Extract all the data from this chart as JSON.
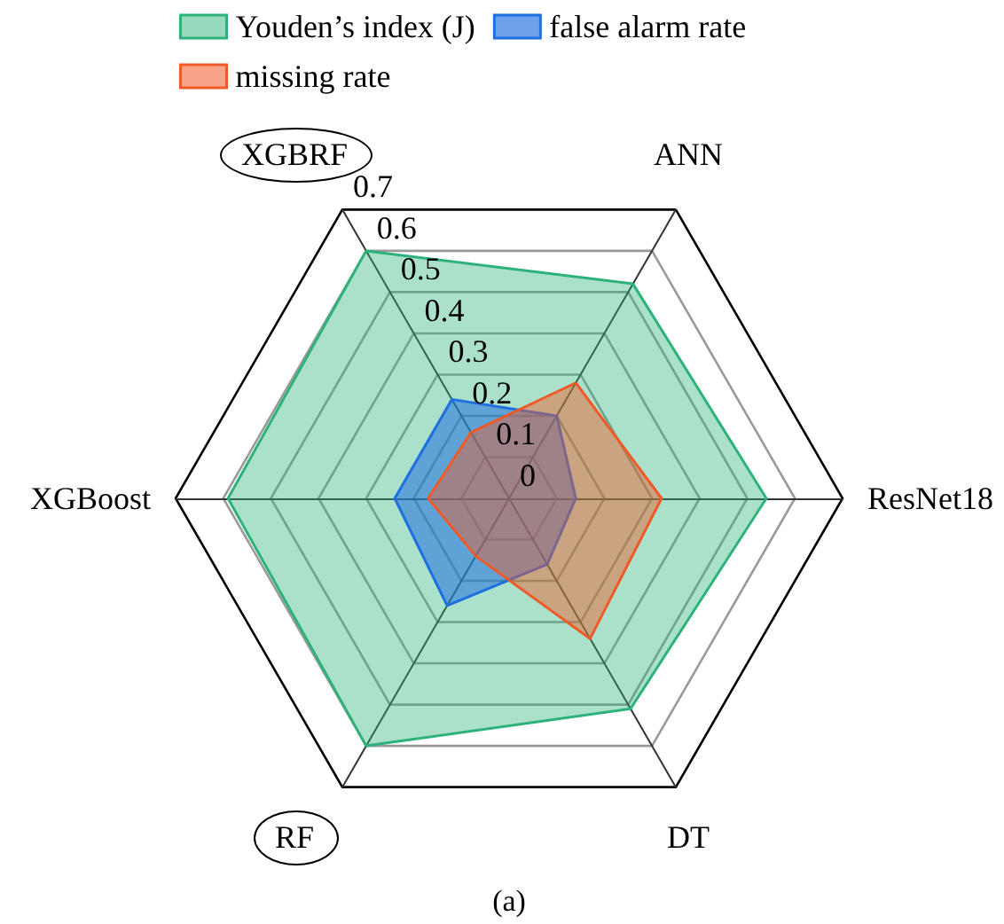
{
  "chart_data": {
    "type": "radar",
    "categories": [
      "ANN",
      "ResNet18",
      "DT",
      "RF",
      "XGBoost",
      "XGBRF"
    ],
    "series": [
      {
        "name": "Youden’s index (J)",
        "color": "#2db37a",
        "values": [
          0.52,
          0.54,
          0.51,
          0.6,
          0.59,
          0.6
        ]
      },
      {
        "name": "false alarm rate",
        "color": "#1f6fe0",
        "values": [
          0.2,
          0.14,
          0.16,
          0.26,
          0.24,
          0.24
        ]
      },
      {
        "name": "missing rate",
        "color": "#f05a28",
        "values": [
          0.28,
          0.32,
          0.34,
          0.14,
          0.17,
          0.16
        ]
      }
    ],
    "ylim": [
      0,
      0.7
    ],
    "yticks": [
      0,
      0.1,
      0.2,
      0.3,
      0.4,
      0.5,
      0.6,
      0.7
    ],
    "legend": "top",
    "annotations": [
      "(a)"
    ]
  }
}
